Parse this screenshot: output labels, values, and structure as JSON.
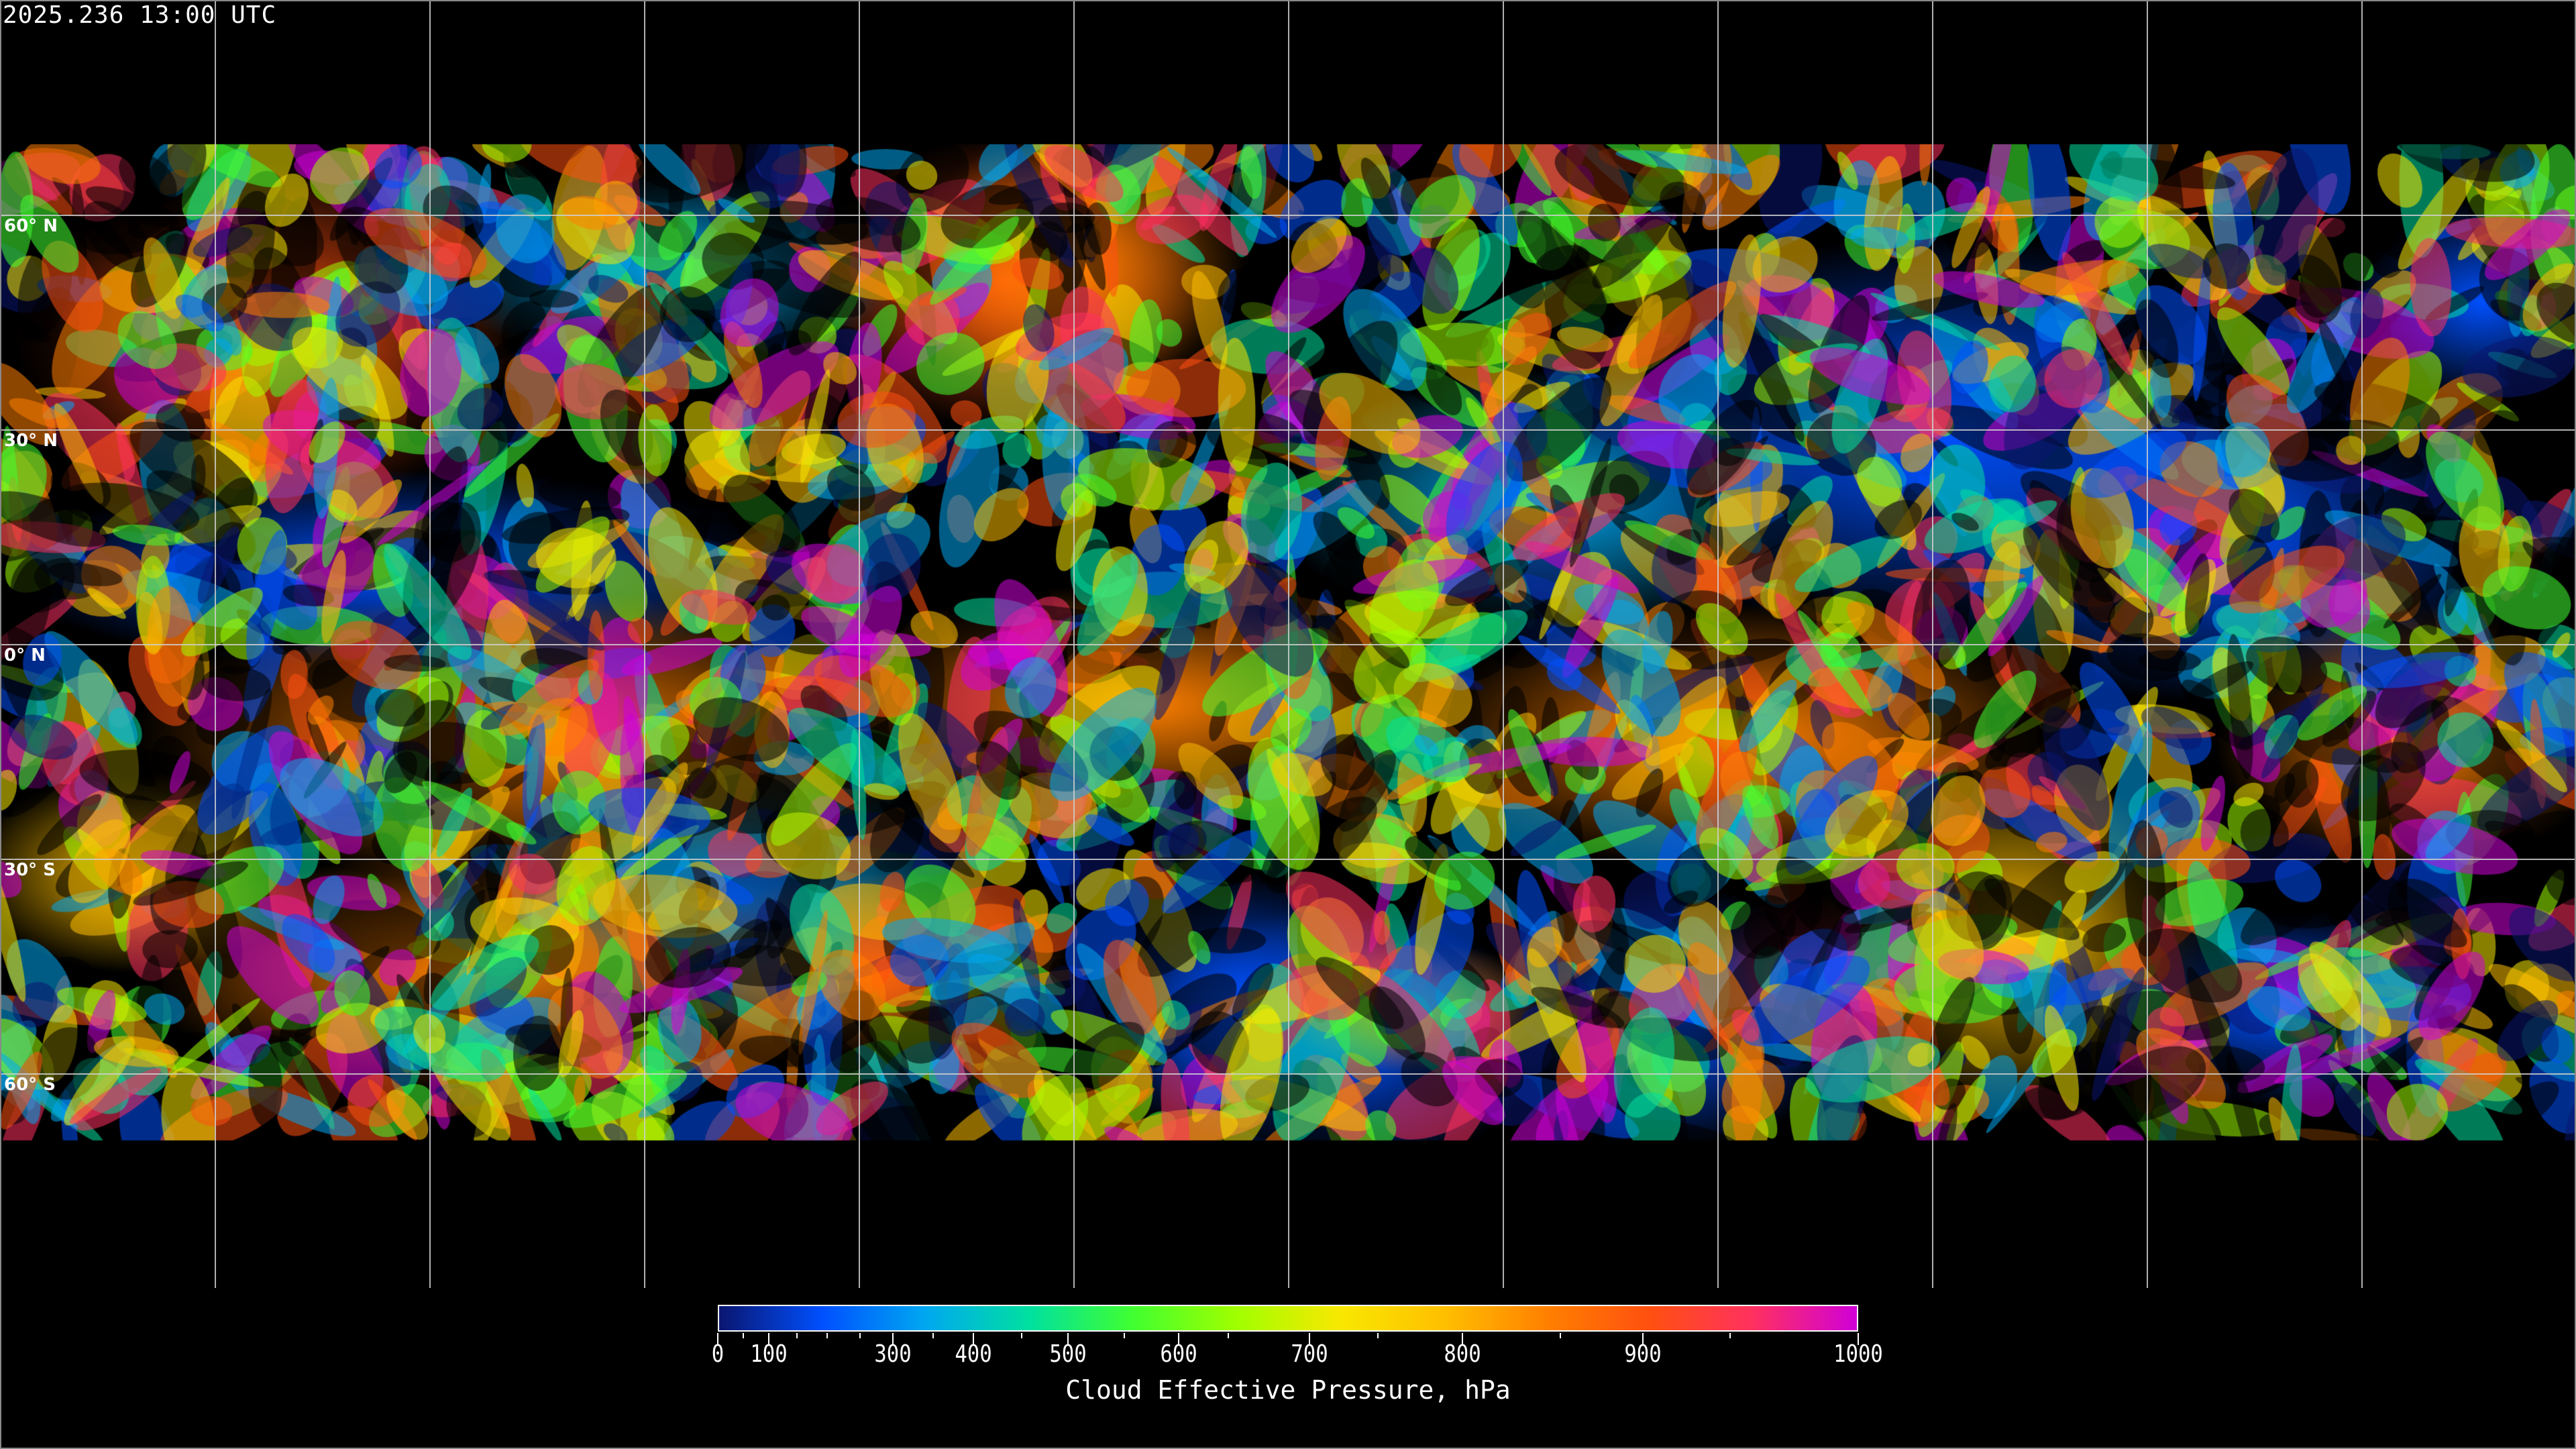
{
  "header": {
    "timestamp": "2025.236 13:00 UTC"
  },
  "map": {
    "projection": "equirectangular",
    "latitude_labels": [
      "60° N",
      "30° N",
      "0° N",
      "30° S",
      "60° S"
    ],
    "gridline_spacing_degrees": 30
  },
  "colorbar": {
    "title": "Cloud Effective Pressure, hPa",
    "range": [
      0,
      1000
    ],
    "tick_labels": [
      "0",
      "100",
      "300",
      "400",
      "500",
      "600",
      "700",
      "800",
      "900",
      "1000"
    ],
    "tick_values": [
      0,
      100,
      300,
      400,
      500,
      600,
      700,
      800,
      900,
      1000
    ],
    "colors": [
      "#0a1670",
      "#0050ff",
      "#00a8f0",
      "#00e0a0",
      "#40ff30",
      "#a0ff00",
      "#f8e800",
      "#ffc000",
      "#ff8000",
      "#ff5010",
      "#ff3060",
      "#d000d8"
    ]
  }
}
